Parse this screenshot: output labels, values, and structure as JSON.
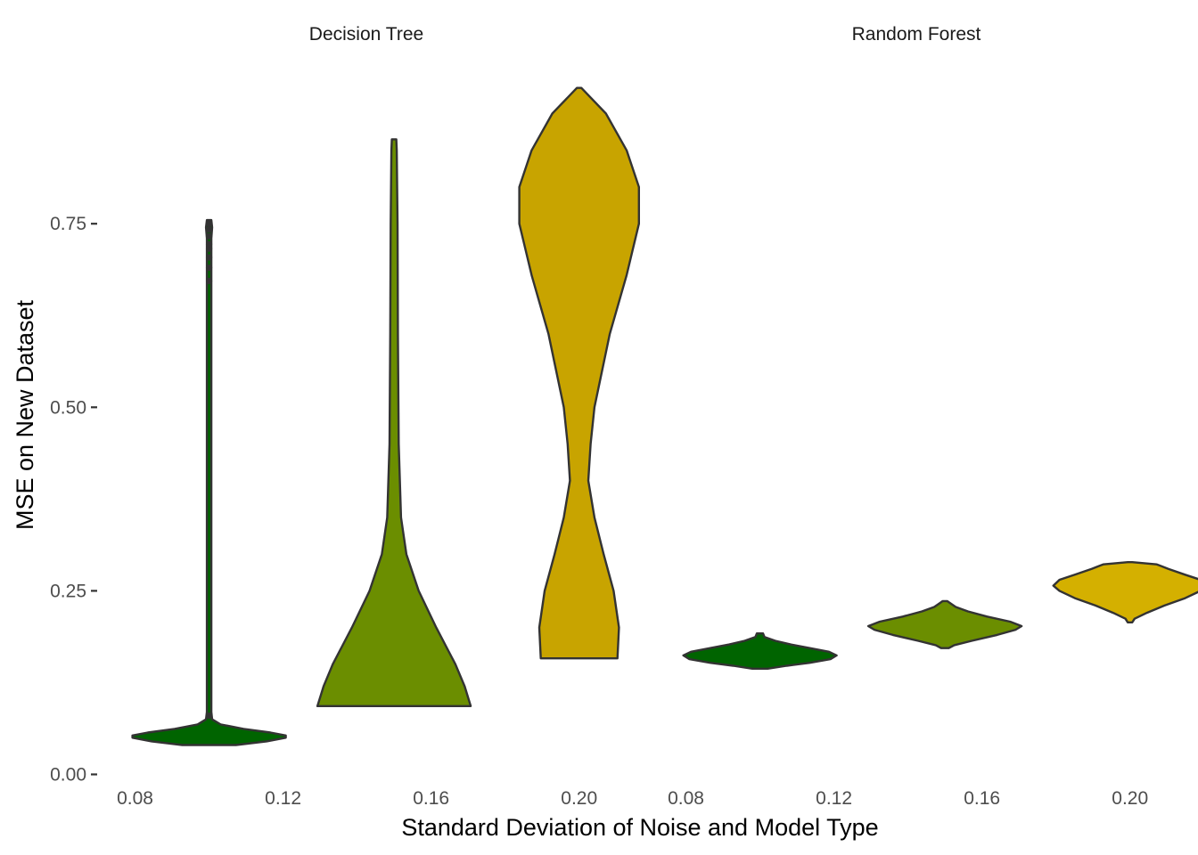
{
  "chart_data": {
    "type": "violin",
    "xlabel": "Standard Deviation of Noise and Model Type",
    "ylabel": "MSE on New Dataset",
    "ylim": [
      0,
      0.95
    ],
    "y_ticks": [
      0.0,
      0.25,
      0.5,
      0.75
    ],
    "y_tick_labels": [
      "0.00",
      "0.25",
      "0.50",
      "0.75"
    ],
    "x_ticks": [
      0.08,
      0.12,
      0.16,
      0.2
    ],
    "x_tick_labels": [
      "0.08",
      "0.12",
      "0.16",
      "0.20"
    ],
    "xlim": [
      0.07,
      0.215
    ],
    "grid": false,
    "legend": "none",
    "panels": [
      {
        "title": "Decision Tree",
        "violins": [
          {
            "sd": 0.1,
            "fill": "#006400",
            "min": 0.04,
            "max": 0.755,
            "profile": [
              [
                0.04,
                0.35
              ],
              [
                0.045,
                0.75
              ],
              [
                0.05,
                1.0
              ],
              [
                0.053,
                1.0
              ],
              [
                0.057,
                0.8
              ],
              [
                0.062,
                0.45
              ],
              [
                0.068,
                0.15
              ],
              [
                0.075,
                0.04
              ],
              [
                0.085,
                0.012
              ],
              [
                0.1,
                0.008
              ],
              [
                0.3,
                0.008
              ],
              [
                0.6,
                0.008
              ],
              [
                0.7,
                0.01
              ],
              [
                0.73,
                0.02
              ],
              [
                0.745,
                0.04
              ],
              [
                0.755,
                0.0
              ]
            ]
          },
          {
            "sd": 0.15,
            "fill": "#6b8e00",
            "min": 0.093,
            "max": 0.865,
            "profile": [
              [
                0.093,
                1.0
              ],
              [
                0.12,
                0.92
              ],
              [
                0.15,
                0.8
              ],
              [
                0.2,
                0.55
              ],
              [
                0.25,
                0.32
              ],
              [
                0.3,
                0.16
              ],
              [
                0.35,
                0.09
              ],
              [
                0.45,
                0.06
              ],
              [
                0.6,
                0.05
              ],
              [
                0.75,
                0.045
              ],
              [
                0.85,
                0.035
              ],
              [
                0.865,
                0.0
              ]
            ]
          },
          {
            "sd": 0.2,
            "fill": "#c8a400",
            "min": 0.158,
            "max": 0.935,
            "profile": [
              [
                0.158,
                0.5
              ],
              [
                0.2,
                0.52
              ],
              [
                0.25,
                0.45
              ],
              [
                0.3,
                0.32
              ],
              [
                0.35,
                0.2
              ],
              [
                0.4,
                0.12
              ],
              [
                0.45,
                0.15
              ],
              [
                0.5,
                0.2
              ],
              [
                0.6,
                0.4
              ],
              [
                0.68,
                0.62
              ],
              [
                0.75,
                0.78
              ],
              [
                0.8,
                0.78
              ],
              [
                0.85,
                0.62
              ],
              [
                0.9,
                0.35
              ],
              [
                0.935,
                0.0
              ]
            ]
          }
        ]
      },
      {
        "title": "Random Forest",
        "violins": [
          {
            "sd": 0.1,
            "fill": "#006400",
            "min": 0.144,
            "max": 0.192,
            "profile": [
              [
                0.144,
                0.1
              ],
              [
                0.148,
                0.35
              ],
              [
                0.152,
                0.65
              ],
              [
                0.157,
                0.92
              ],
              [
                0.162,
                1.0
              ],
              [
                0.167,
                0.9
              ],
              [
                0.172,
                0.65
              ],
              [
                0.177,
                0.4
              ],
              [
                0.182,
                0.2
              ],
              [
                0.187,
                0.06
              ],
              [
                0.192,
                0.04
              ]
            ]
          },
          {
            "sd": 0.15,
            "fill": "#6b8e00",
            "min": 0.172,
            "max": 0.236,
            "profile": [
              [
                0.172,
                0.05
              ],
              [
                0.176,
                0.12
              ],
              [
                0.182,
                0.35
              ],
              [
                0.19,
                0.68
              ],
              [
                0.197,
                0.92
              ],
              [
                0.202,
                1.0
              ],
              [
                0.208,
                0.85
              ],
              [
                0.215,
                0.55
              ],
              [
                0.222,
                0.3
              ],
              [
                0.228,
                0.14
              ],
              [
                0.233,
                0.07
              ],
              [
                0.236,
                0.0
              ]
            ]
          },
          {
            "sd": 0.2,
            "fill": "#d4b000",
            "min": 0.207,
            "max": 0.289,
            "profile": [
              [
                0.207,
                0.0
              ],
              [
                0.212,
                0.06
              ],
              [
                0.22,
                0.22
              ],
              [
                0.23,
                0.45
              ],
              [
                0.24,
                0.72
              ],
              [
                0.25,
                0.92
              ],
              [
                0.257,
                1.0
              ],
              [
                0.265,
                0.92
              ],
              [
                0.272,
                0.72
              ],
              [
                0.28,
                0.5
              ],
              [
                0.286,
                0.35
              ],
              [
                0.289,
                0.0
              ]
            ]
          }
        ]
      }
    ],
    "outliers": [
      {
        "panel": "Decision Tree",
        "sd": 0.1,
        "values": [
          0.08,
          0.672,
          0.69,
          0.704,
          0.716,
          0.722,
          0.733,
          0.742,
          0.75
        ]
      }
    ]
  }
}
